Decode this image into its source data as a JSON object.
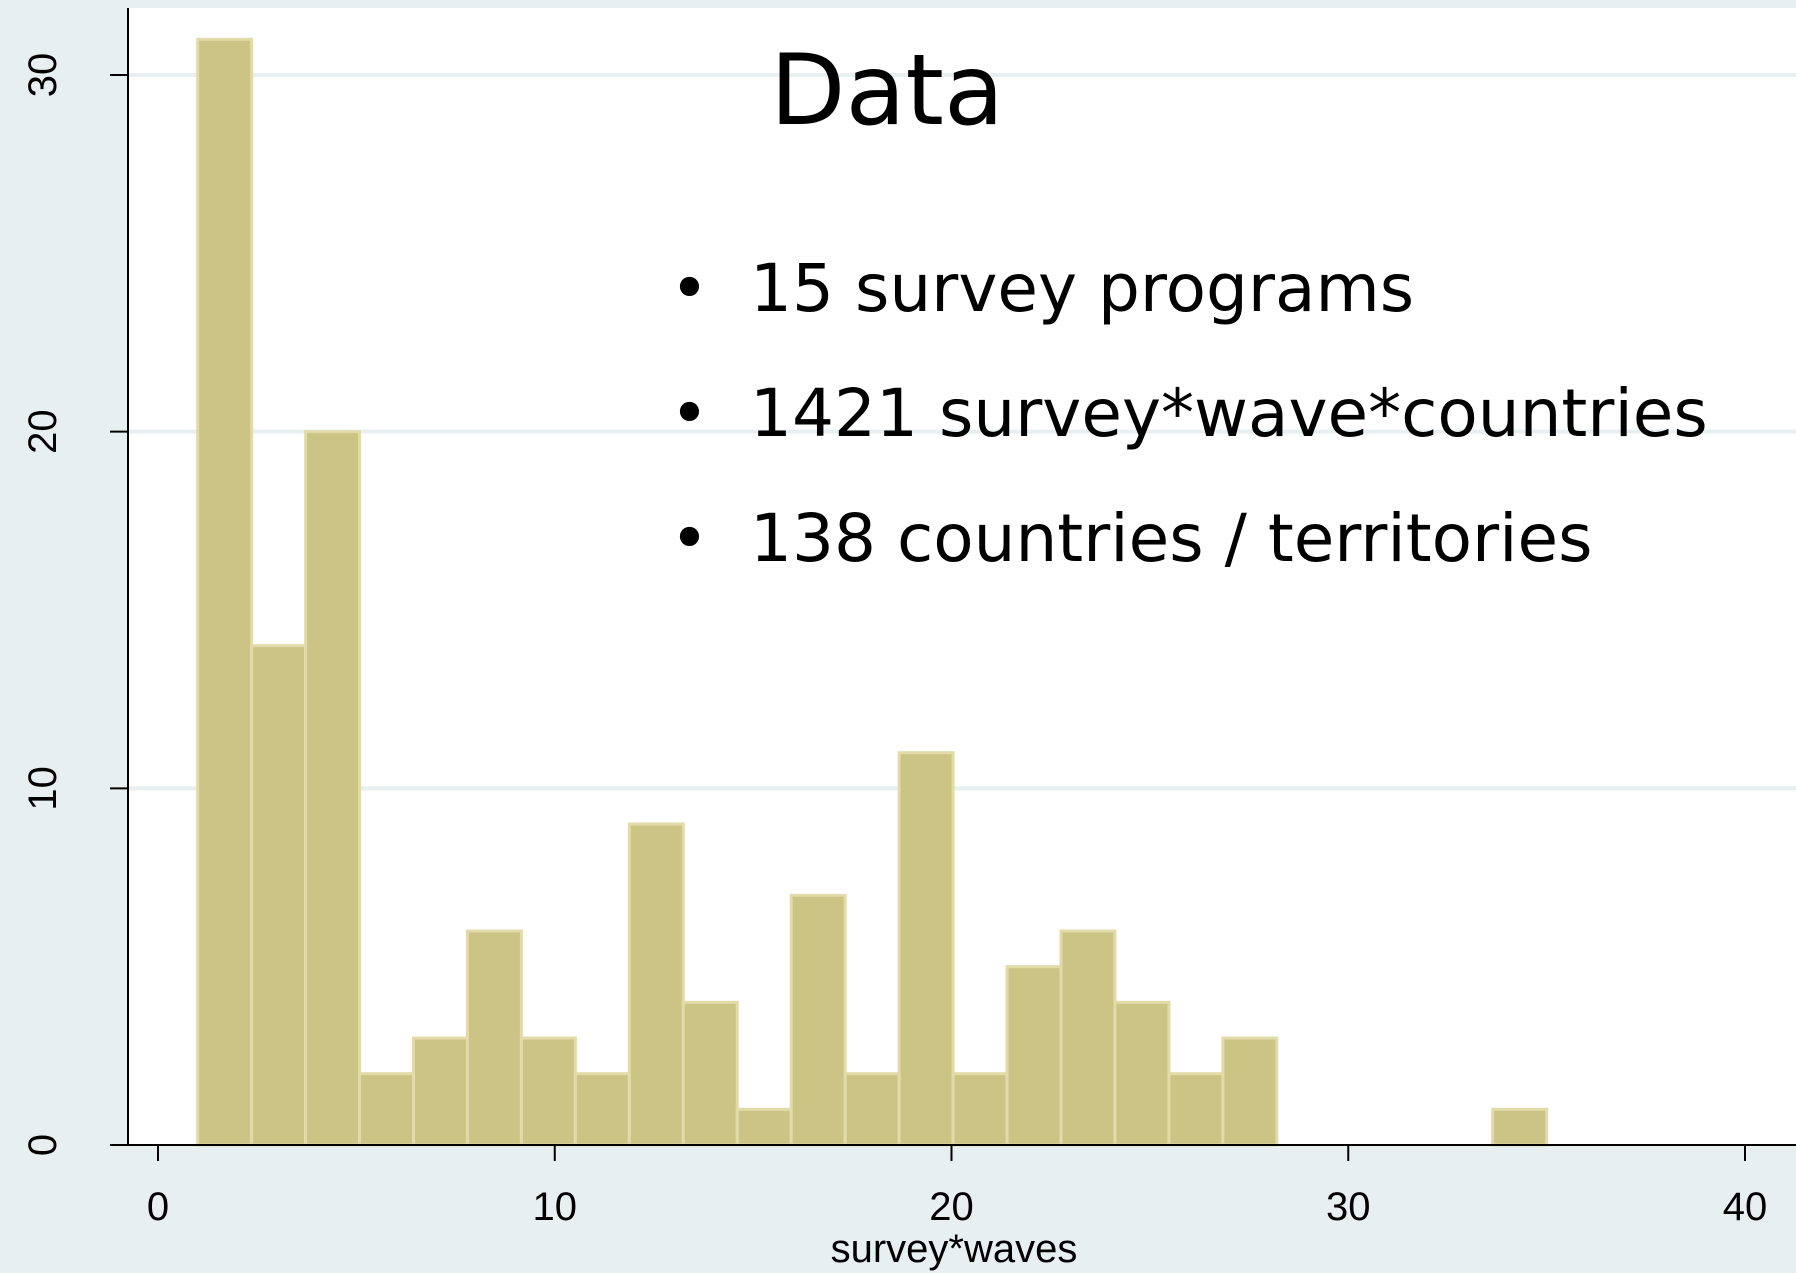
{
  "chart_data": {
    "type": "bar",
    "subtype": "histogram",
    "xlabel": "survey*waves",
    "ylabel": "",
    "xlim": [
      0,
      40
    ],
    "ylim": [
      0,
      30
    ],
    "x_ticks": [
      "0",
      "10",
      "20",
      "30",
      "40"
    ],
    "y_ticks": [
      "0",
      "10",
      "20",
      "30"
    ],
    "grid": true,
    "bin_width": 1.36,
    "bins": [
      {
        "start": 1.0,
        "value": 31
      },
      {
        "start": 2.36,
        "value": 14
      },
      {
        "start": 3.72,
        "value": 20
      },
      {
        "start": 5.08,
        "value": 2
      },
      {
        "start": 6.44,
        "value": 3
      },
      {
        "start": 7.8,
        "value": 6
      },
      {
        "start": 9.16,
        "value": 3
      },
      {
        "start": 10.52,
        "value": 2
      },
      {
        "start": 11.88,
        "value": 9
      },
      {
        "start": 13.24,
        "value": 4
      },
      {
        "start": 14.6,
        "value": 1
      },
      {
        "start": 15.96,
        "value": 7
      },
      {
        "start": 17.32,
        "value": 2
      },
      {
        "start": 18.68,
        "value": 11
      },
      {
        "start": 20.04,
        "value": 2
      },
      {
        "start": 21.4,
        "value": 5
      },
      {
        "start": 22.76,
        "value": 6
      },
      {
        "start": 24.12,
        "value": 4
      },
      {
        "start": 25.48,
        "value": 2
      },
      {
        "start": 26.84,
        "value": 3
      },
      {
        "start": 33.64,
        "value": 1
      }
    ],
    "colors": {
      "bar_fill": "#ccc484",
      "bar_edge": "#e2dba9",
      "plot_bg": "#ffffff",
      "outer_bg": "#e8eff1",
      "grid": "#e8eff1",
      "axis": "#000000"
    }
  },
  "slide": {
    "title": "Data",
    "bullets": [
      "15 survey programs",
      "1421 survey*wave*countries",
      "138 countries / territories"
    ]
  }
}
